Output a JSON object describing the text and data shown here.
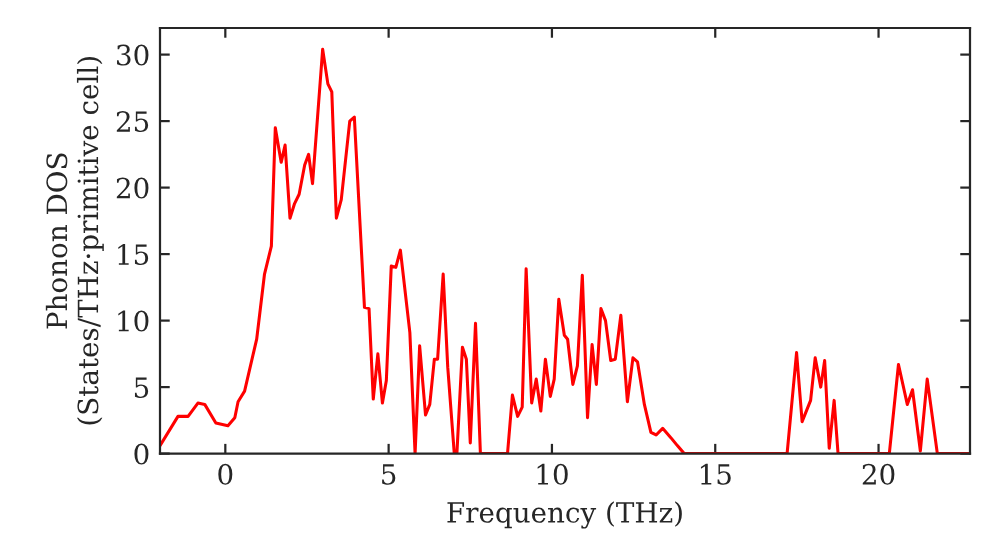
{
  "chart_data": {
    "type": "line",
    "xlabel": "Frequency (THz)",
    "ylabel": "Phonon DOS\n(States/THz·primitive cell)",
    "x": [
      -2.0,
      -1.45,
      -1.14,
      -0.84,
      -0.63,
      -0.29,
      0.08,
      0.29,
      0.39,
      0.59,
      0.96,
      1.2,
      1.41,
      1.53,
      1.71,
      1.83,
      1.98,
      2.12,
      2.26,
      2.43,
      2.55,
      2.67,
      2.98,
      3.14,
      3.26,
      3.4,
      3.55,
      3.81,
      3.95,
      4.26,
      4.4,
      4.53,
      4.67,
      4.81,
      4.93,
      5.08,
      5.22,
      5.36,
      5.65,
      5.81,
      5.95,
      6.13,
      6.26,
      6.4,
      6.5,
      6.67,
      6.81,
      7.01,
      7.09,
      7.26,
      7.38,
      7.5,
      7.66,
      7.81,
      8.64,
      8.79,
      8.95,
      9.09,
      9.21,
      9.38,
      9.52,
      9.66,
      9.8,
      9.95,
      10.07,
      10.21,
      10.38,
      10.48,
      10.64,
      10.78,
      10.93,
      11.09,
      11.23,
      11.36,
      11.5,
      11.64,
      11.8,
      11.94,
      12.11,
      12.31,
      12.48,
      12.62,
      12.83,
      13.03,
      13.19,
      13.39,
      13.64,
      13.84,
      14.05,
      17.2,
      17.49,
      17.66,
      17.92,
      18.06,
      18.23,
      18.35,
      18.49,
      18.64,
      18.76,
      20.33,
      20.61,
      20.88,
      21.04,
      21.28,
      21.49,
      21.8,
      22.8
    ],
    "series": [
      {
        "color": "#ff0000",
        "values": [
          0.6,
          2.8,
          2.8,
          3.8,
          3.7,
          2.3,
          2.1,
          2.7,
          3.9,
          4.7,
          8.6,
          13.5,
          15.6,
          24.5,
          21.9,
          23.2,
          17.7,
          18.8,
          19.5,
          21.7,
          22.5,
          20.3,
          30.4,
          27.8,
          27.2,
          17.7,
          19.1,
          25.0,
          25.3,
          11.0,
          10.9,
          4.1,
          7.5,
          3.8,
          5.5,
          14.1,
          14.0,
          15.3,
          9.1,
          0,
          8.1,
          2.9,
          3.7,
          7.1,
          7.1,
          13.5,
          6.5,
          0,
          0,
          8.0,
          7.1,
          0.8,
          9.8,
          0,
          0,
          4.4,
          2.8,
          3.5,
          13.9,
          3.8,
          5.6,
          3.2,
          7.1,
          4.3,
          5.6,
          11.6,
          8.9,
          8.6,
          5.2,
          6.6,
          13.4,
          2.7,
          8.2,
          5.2,
          10.9,
          10.0,
          7.0,
          7.1,
          10.4,
          3.9,
          7.2,
          6.9,
          3.7,
          1.6,
          1.4,
          1.9,
          1.2,
          0.6,
          0,
          0,
          7.6,
          2.4,
          4.0,
          7.2,
          5.0,
          7.0,
          0.4,
          4.0,
          0,
          0,
          6.7,
          3.7,
          4.8,
          0.2,
          5.6,
          0,
          0
        ]
      }
    ],
    "xlim": [
      -2,
      22.8
    ],
    "ylim": [
      0,
      32
    ],
    "xticks": [
      0,
      5,
      10,
      15,
      20
    ],
    "yticks": [
      0,
      5,
      10,
      15,
      20,
      25,
      30
    ],
    "grid": false,
    "legend": false
  }
}
